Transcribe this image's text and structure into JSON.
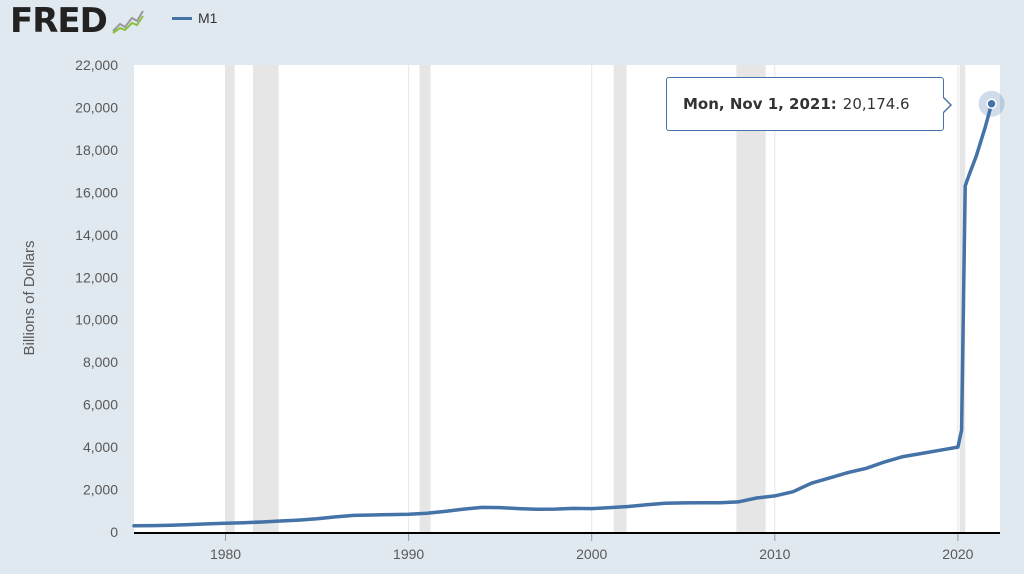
{
  "logo": {
    "text": "FRED"
  },
  "chart_data": {
    "type": "line",
    "ylabel": "Billions of Dollars",
    "xlim": [
      1975,
      2022.3
    ],
    "ylim": [
      0,
      22000
    ],
    "y_ticks": [
      0,
      2000,
      4000,
      6000,
      8000,
      10000,
      12000,
      14000,
      16000,
      18000,
      20000,
      22000
    ],
    "x_ticks": [
      1980,
      1990,
      2000,
      2010,
      2020
    ],
    "grid": "vertical",
    "legend_position": "top-left",
    "colors": {
      "series": "#4572a7",
      "recession": "#e6e6e6",
      "plot_bg": "#ffffff",
      "page_bg": "#e1e9f0"
    },
    "series": [
      {
        "name": "M1",
        "x": [
          1975.0,
          1976.0,
          1977.0,
          1978.0,
          1979.0,
          1980.0,
          1981.0,
          1982.0,
          1983.0,
          1984.0,
          1985.0,
          1986.0,
          1987.0,
          1988.0,
          1989.0,
          1990.0,
          1991.0,
          1992.0,
          1993.0,
          1994.0,
          1995.0,
          1996.0,
          1997.0,
          1998.0,
          1999.0,
          2000.0,
          2001.0,
          2002.0,
          2003.0,
          2004.0,
          2005.0,
          2006.0,
          2007.0,
          2008.0,
          2009.0,
          2010.0,
          2011.0,
          2012.0,
          2013.0,
          2014.0,
          2015.0,
          2016.0,
          2017.0,
          2018.0,
          2019.0,
          2020.0,
          2020.2,
          2020.4,
          2020.6,
          2021.0,
          2021.5,
          2021.84
        ],
        "y": [
          290,
          300,
          320,
          350,
          380,
          410,
          440,
          470,
          520,
          560,
          620,
          710,
          780,
          800,
          820,
          840,
          880,
          970,
          1080,
          1160,
          1150,
          1100,
          1070,
          1080,
          1110,
          1100,
          1150,
          1200,
          1280,
          1350,
          1370,
          1380,
          1380,
          1420,
          1600,
          1700,
          1900,
          2300,
          2550,
          2800,
          3000,
          3300,
          3550,
          3700,
          3850,
          4000,
          4800,
          16300,
          16800,
          17700,
          19100,
          20174.6
        ]
      }
    ],
    "recessions": [
      [
        1980.0,
        1980.5
      ],
      [
        1981.5,
        1982.9
      ],
      [
        1990.6,
        1991.2
      ],
      [
        2001.2,
        2001.9
      ],
      [
        2007.9,
        2009.5
      ],
      [
        2020.1,
        2020.4
      ]
    ],
    "tooltip": {
      "date": "Mon, Nov 1, 2021:",
      "value": "20,174.6"
    }
  }
}
